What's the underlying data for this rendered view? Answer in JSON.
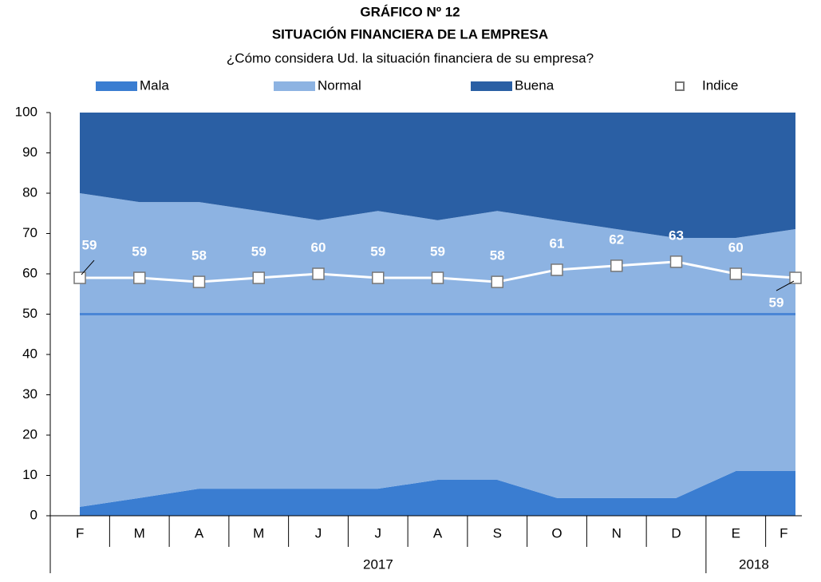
{
  "chart_data": {
    "type": "stacked_area",
    "title": "GRÁFICO Nº 12",
    "subtitle": "SITUACIÓN FINANCIERA DE LA EMPRESA",
    "question": "¿Cómo considera Ud. la situación financiera de su empresa?",
    "categories": [
      "F",
      "M",
      "A",
      "M",
      "J",
      "J",
      "A",
      "S",
      "O",
      "N",
      "D",
      "E",
      "F"
    ],
    "years": [
      "2017",
      "2017",
      "2017",
      "2017",
      "2017",
      "2017",
      "2017",
      "2017",
      "2017",
      "2017",
      "2017",
      "2018",
      "2018"
    ],
    "series": [
      {
        "name": "Mala",
        "color": "#3a7dd1",
        "values": [
          2.2,
          4.4,
          6.7,
          6.7,
          6.7,
          6.7,
          8.9,
          8.9,
          4.4,
          4.4,
          4.4,
          11.1,
          11.1
        ]
      },
      {
        "name": "Normal",
        "color": "#8db3e2",
        "values": [
          77.8,
          73.4,
          71.1,
          68.9,
          66.6,
          68.9,
          64.4,
          66.7,
          68.9,
          66.7,
          64.5,
          57.8,
          60.0
        ]
      },
      {
        "name": "Buena",
        "color": "#2a5fa4",
        "values": [
          20.0,
          22.2,
          22.2,
          24.4,
          26.7,
          24.4,
          26.7,
          24.4,
          26.7,
          28.9,
          31.1,
          31.1,
          28.9
        ]
      }
    ],
    "index_series": {
      "type": "line",
      "name": "Indice",
      "color": "#ffffff",
      "values": [
        59,
        59,
        58,
        59,
        60,
        59,
        59,
        58,
        61,
        62,
        63,
        60,
        59
      ]
    },
    "reference_line": 50,
    "reference_color": "#4a86d6",
    "ylim": [
      0,
      100
    ],
    "yticks": [
      0,
      10,
      20,
      30,
      40,
      50,
      60,
      70,
      80,
      90,
      100
    ]
  }
}
